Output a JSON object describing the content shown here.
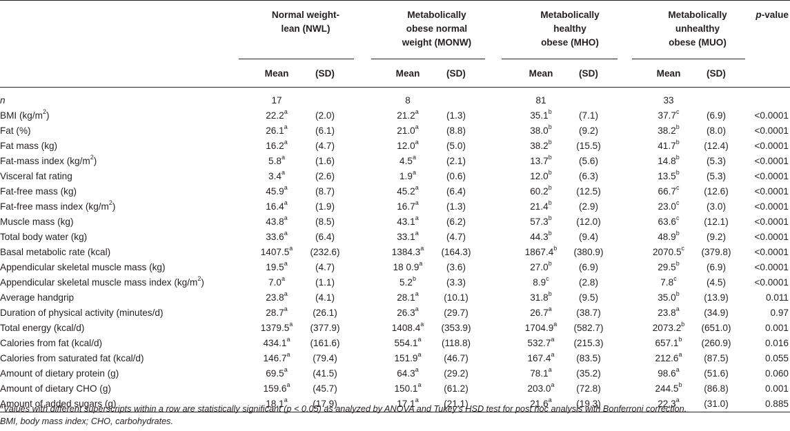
{
  "groups": [
    {
      "name": "Normal weight-\nlean (NWL)",
      "line1": "Normal weight-",
      "line2": "lean (NWL)",
      "line3": ""
    },
    {
      "name": "Metabolically obese normal weight (MONW)",
      "line1": "Metabolically",
      "line2": "obese normal",
      "line3": "weight (MONW)"
    },
    {
      "name": "Metabolically healthy obese (MHO)",
      "line1": "Metabolically",
      "line2": "healthy",
      "line3": "obese (MHO)"
    },
    {
      "name": "Metabolically unhealthy obese (MUO)",
      "line1": "Metabolically",
      "line2": "unhealthy",
      "line3": "obese (MUO)"
    }
  ],
  "p_header": "p",
  "p_header_suffix": "-value",
  "mean_label": "Mean",
  "sd_label": "(SD)",
  "n_row": {
    "label": "n",
    "values": [
      "17",
      "8",
      "81",
      "33"
    ]
  },
  "rows": [
    {
      "label": "BMI (kg/m",
      "label_sup": "2",
      "label_end": ")",
      "cells": [
        [
          "22.2",
          "a",
          "(2.0)"
        ],
        [
          "21.2",
          "a",
          "(1.3)"
        ],
        [
          "35.1",
          "b",
          "(7.1)"
        ],
        [
          "37.7",
          "c",
          "(6.9)"
        ]
      ],
      "p": "<0.0001"
    },
    {
      "label": "Fat (%)",
      "label_sup": "",
      "label_end": "",
      "cells": [
        [
          "26.1",
          "a",
          "(6.1)"
        ],
        [
          "21.0",
          "a",
          "(8.8)"
        ],
        [
          "38.0",
          "b",
          "(9.2)"
        ],
        [
          "38.2",
          "b",
          "(8.0)"
        ]
      ],
      "p": "<0.0001"
    },
    {
      "label": "Fat mass (kg)",
      "label_sup": "",
      "label_end": "",
      "cells": [
        [
          "16.2",
          "a",
          "(4.7)"
        ],
        [
          "12.0",
          "a",
          "(5.0)"
        ],
        [
          "38.2",
          "b",
          "(15.5)"
        ],
        [
          "41.7",
          "b",
          "(12.4)"
        ]
      ],
      "p": "<0.0001"
    },
    {
      "label": "Fat-mass index (kg/m",
      "label_sup": "2",
      "label_end": ")",
      "cells": [
        [
          "5.8",
          "a",
          "(1.6)"
        ],
        [
          "4.5",
          "a",
          "(2.1)"
        ],
        [
          "13.7",
          "b",
          "(5.6)"
        ],
        [
          "14.8",
          "b",
          "(5.3)"
        ]
      ],
      "p": "<0.0001"
    },
    {
      "label": "Visceral fat rating",
      "label_sup": "",
      "label_end": "",
      "cells": [
        [
          "3.4",
          "a",
          "(2.6)"
        ],
        [
          "1.9",
          "a",
          "(0.6)"
        ],
        [
          "12.0",
          "b",
          "(6.3)"
        ],
        [
          "13.5",
          "b",
          "(5.3)"
        ]
      ],
      "p": "<0.0001"
    },
    {
      "label": "Fat-free mass (kg)",
      "label_sup": "",
      "label_end": "",
      "cells": [
        [
          "45.9",
          "a",
          "(8.7)"
        ],
        [
          "45.2",
          "a",
          "(6.4)"
        ],
        [
          "60.2",
          "b",
          "(12.5)"
        ],
        [
          "66.7",
          "c",
          "(12.6)"
        ]
      ],
      "p": "<0.0001"
    },
    {
      "label": "Fat-free mass index (kg/m",
      "label_sup": "2",
      "label_end": ")",
      "cells": [
        [
          "16.4",
          "a",
          "(1.9)"
        ],
        [
          "16.7",
          "a",
          "(1.3)"
        ],
        [
          "21.4",
          "b",
          "(2.9)"
        ],
        [
          "23.0",
          "c",
          "(3.0)"
        ]
      ],
      "p": "<0.0001"
    },
    {
      "label": "Muscle mass (kg)",
      "label_sup": "",
      "label_end": "",
      "cells": [
        [
          "43.8",
          "a",
          "(8.5)"
        ],
        [
          "43.1",
          "a",
          "(6.2)"
        ],
        [
          "57.3",
          "b",
          "(12.0)"
        ],
        [
          "63.6",
          "c",
          "(12.1)"
        ]
      ],
      "p": "<0.0001"
    },
    {
      "label": "Total body water (kg)",
      "label_sup": "",
      "label_end": "",
      "cells": [
        [
          "33.6",
          "a",
          "(6.4)"
        ],
        [
          "33.1",
          "a",
          "(4.7)"
        ],
        [
          "44.3",
          "b",
          "(9.4)"
        ],
        [
          "48.9",
          "b",
          "(9.2)"
        ]
      ],
      "p": "<0.0001"
    },
    {
      "label": "Basal metabolic rate (kcal)",
      "label_sup": "",
      "label_end": "",
      "cells": [
        [
          "1407.5",
          "a",
          "(232.6)"
        ],
        [
          "1384.3",
          "a",
          "(164.3)"
        ],
        [
          "1867.4",
          "b",
          "(380.9)"
        ],
        [
          "2070.5",
          "c",
          "(379.8)"
        ]
      ],
      "p": "<0.0001"
    },
    {
      "label": "Appendicular skeletal muscle mass (kg)",
      "label_sup": "",
      "label_end": "",
      "cells": [
        [
          "19.5",
          "a",
          "(4.7)"
        ],
        [
          "18 0.9",
          "a",
          "(3.6)"
        ],
        [
          "27.0",
          "b",
          "(6.9)"
        ],
        [
          "29.5",
          "b",
          "(6.9)"
        ]
      ],
      "p": "<0.0001"
    },
    {
      "label": "Appendicular skeletal muscle mass index (kg/m",
      "label_sup": "2",
      "label_end": ")",
      "cells": [
        [
          "7.0",
          "a",
          "(1.1)"
        ],
        [
          "5.2",
          "b",
          "(3.3)"
        ],
        [
          "8.9",
          "c",
          "(2.8)"
        ],
        [
          "7.8",
          "c",
          "(4.5)"
        ]
      ],
      "p": "<0.0001"
    },
    {
      "label": "Average handgrip",
      "label_sup": "",
      "label_end": "",
      "cells": [
        [
          "23.8",
          "a",
          "(4.1)"
        ],
        [
          "28.1",
          "a",
          "(10.1)"
        ],
        [
          "31.8",
          "b",
          "(9.5)"
        ],
        [
          "35.0",
          "b",
          "(13.9)"
        ]
      ],
      "p": "0.011"
    },
    {
      "label": "Duration of physical activity (minutes/d)",
      "label_sup": "",
      "label_end": "",
      "cells": [
        [
          "28.7",
          "a",
          "(26.1)"
        ],
        [
          "26.3",
          "a",
          "(29.7)"
        ],
        [
          "26.7",
          "a",
          "(38.7)"
        ],
        [
          "23.8",
          "a",
          "(34.9)"
        ]
      ],
      "p": "0.97"
    },
    {
      "label": "Total energy (kcal/d)",
      "label_sup": "",
      "label_end": "",
      "cells": [
        [
          "1379.5",
          "a",
          "(377.9)"
        ],
        [
          "1408.4",
          "a",
          "(353.9)"
        ],
        [
          "1704.9",
          "a",
          "(582.7)"
        ],
        [
          "2073.2",
          "b",
          "(651.0)"
        ]
      ],
      "p": "0.001"
    },
    {
      "label": "Calories from fat (kcal/d)",
      "label_sup": "",
      "label_end": "",
      "cells": [
        [
          "434.1",
          "a",
          "(161.6)"
        ],
        [
          "554.1",
          "a",
          "(118.8)"
        ],
        [
          "532.7",
          "a",
          "(215.3)"
        ],
        [
          "657.1",
          "b",
          "(260.9)"
        ]
      ],
      "p": "0.016"
    },
    {
      "label": "Calories from saturated fat (kcal/d)",
      "label_sup": "",
      "label_end": "",
      "cells": [
        [
          "146.7",
          "a",
          "(79.4)"
        ],
        [
          "151.9",
          "a",
          "(46.7)"
        ],
        [
          "167.4",
          "a",
          "(83.5)"
        ],
        [
          "212.6",
          "a",
          "(87.5)"
        ]
      ],
      "p": "0.055"
    },
    {
      "label": "Amount of dietary protein (g)",
      "label_sup": "",
      "label_end": "",
      "cells": [
        [
          "69.5",
          "a",
          "(41.5)"
        ],
        [
          "64.3",
          "a",
          "(29.2)"
        ],
        [
          "78.1",
          "a",
          "(35.2)"
        ],
        [
          "98.6",
          "a",
          "(51.6)"
        ]
      ],
      "p": "0.060"
    },
    {
      "label": "Amount of dietary CHO (g)",
      "label_sup": "",
      "label_end": "",
      "cells": [
        [
          "159.6",
          "a",
          "(45.7)"
        ],
        [
          "150.1",
          "a",
          "(61.2)"
        ],
        [
          "203.0",
          "a",
          "(72.8)"
        ],
        [
          "244.5",
          "b",
          "(86.8)"
        ]
      ],
      "p": "0.001"
    },
    {
      "label": "Amount of added sugars (g)",
      "label_sup": "",
      "label_end": "",
      "cells": [
        [
          "18.1",
          "a",
          "(17.9)"
        ],
        [
          "17.1",
          "a",
          "(21.1)"
        ],
        [
          "21.6",
          "a",
          "(19.3)"
        ],
        [
          "22.3",
          "a",
          "(31.0)"
        ]
      ],
      "p": "0.885"
    }
  ],
  "footnote": {
    "sup": "a",
    "line1": "Values with different superscripts within a row are statistically significant (p < 0.05) as analyzed by ANOVA and Tukey's HSD test for post hoc analysis with Bonferroni correction.",
    "line2": "BMI, body mass index; CHO, carbohydrates."
  }
}
